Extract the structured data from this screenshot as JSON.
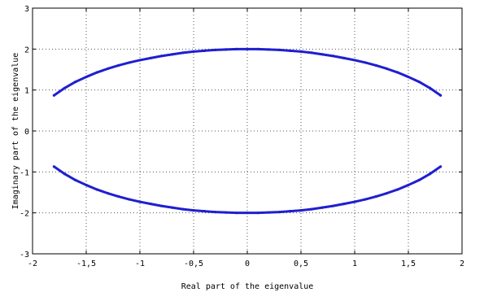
{
  "chart_data": {
    "type": "scatter",
    "title": "",
    "xlabel": "Real part of the eigenvalue",
    "ylabel": "Imaginary part of the eigenvalue",
    "xlim": [
      -2,
      2
    ],
    "ylim": [
      -3,
      3
    ],
    "x_ticks": [
      -2,
      -1.5,
      -1,
      -0.5,
      0,
      0.5,
      1,
      1.5,
      2
    ],
    "x_tick_labels": [
      "-2",
      "-1,5",
      "-1",
      "-0,5",
      "0",
      "0,5",
      "1",
      "1,5",
      "2"
    ],
    "y_ticks": [
      -3,
      -2,
      -1,
      0,
      1,
      2,
      3
    ],
    "y_tick_labels": [
      "-3",
      "-2",
      "-1",
      "0",
      "1",
      "2",
      "3"
    ],
    "grid": true,
    "series_color": "#1f1fd0",
    "series": [
      {
        "x": [
          -1.8,
          -1.7,
          -1.6,
          -1.5,
          -1.4,
          -1.3,
          -1.2,
          -1.1,
          -1.0,
          -0.9,
          -0.8,
          -0.7,
          -0.6,
          -0.5,
          -0.4,
          -0.3,
          -0.2,
          -0.1,
          0.0,
          0.1,
          0.2,
          0.3,
          0.4,
          0.5,
          0.6,
          0.7,
          0.8,
          0.9,
          1.0,
          1.1,
          1.2,
          1.3,
          1.4,
          1.5,
          1.6,
          1.7,
          1.8
        ],
        "y": [
          0.87,
          1.05,
          1.2,
          1.32,
          1.43,
          1.52,
          1.6,
          1.67,
          1.73,
          1.78,
          1.83,
          1.87,
          1.91,
          1.94,
          1.96,
          1.98,
          1.99,
          2.0,
          2.0,
          2.0,
          1.99,
          1.98,
          1.96,
          1.94,
          1.91,
          1.87,
          1.83,
          1.78,
          1.73,
          1.67,
          1.6,
          1.52,
          1.43,
          1.32,
          1.2,
          1.05,
          0.87
        ]
      },
      {
        "x": [
          -1.8,
          -1.7,
          -1.6,
          -1.5,
          -1.4,
          -1.3,
          -1.2,
          -1.1,
          -1.0,
          -0.9,
          -0.8,
          -0.7,
          -0.6,
          -0.5,
          -0.4,
          -0.3,
          -0.2,
          -0.1,
          0.0,
          0.1,
          0.2,
          0.3,
          0.4,
          0.5,
          0.6,
          0.7,
          0.8,
          0.9,
          1.0,
          1.1,
          1.2,
          1.3,
          1.4,
          1.5,
          1.6,
          1.7,
          1.8
        ],
        "y": [
          -0.87,
          -1.05,
          -1.2,
          -1.32,
          -1.43,
          -1.52,
          -1.6,
          -1.67,
          -1.73,
          -1.78,
          -1.83,
          -1.87,
          -1.91,
          -1.94,
          -1.96,
          -1.98,
          -1.99,
          -2.0,
          -2.0,
          -2.0,
          -1.99,
          -1.98,
          -1.96,
          -1.94,
          -1.91,
          -1.87,
          -1.83,
          -1.78,
          -1.73,
          -1.67,
          -1.6,
          -1.52,
          -1.43,
          -1.32,
          -1.2,
          -1.05,
          -0.87
        ]
      }
    ]
  }
}
